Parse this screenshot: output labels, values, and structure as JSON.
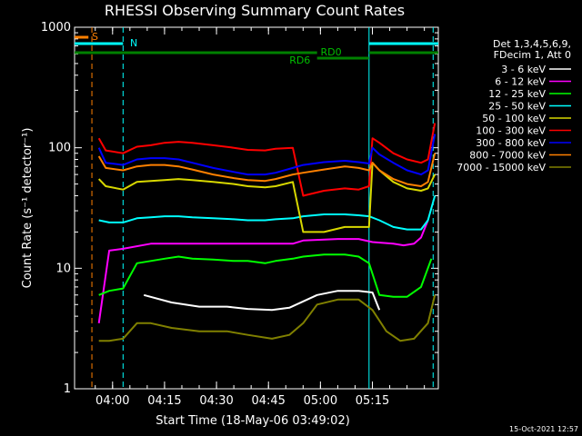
{
  "title": "RHESSI Observing Summary Count Rates",
  "footer_timestamp": "15-Oct-2021 12:57",
  "chart_data": {
    "type": "line",
    "title": "RHESSI Observing Summary Count Rates",
    "xlabel": "Start Time (18-May-06 03:49:02)",
    "ylabel": "Count Rate (s⁻¹ detector⁻¹)",
    "y_scale": "log",
    "ylim": [
      1,
      1000
    ],
    "xlim_minutes_after_03_49_02": [
      0,
      105
    ],
    "x_ticks": [
      "04:00",
      "04:15",
      "04:30",
      "04:45",
      "05:00",
      "05:15"
    ],
    "y_ticks": [
      "1",
      "10",
      "100",
      "1000"
    ],
    "legend_header": [
      "Det 1,3,4,5,6,9,",
      "FDecim 1, Att 0"
    ],
    "legend_position": "right",
    "series": [
      {
        "name": "3 - 6 keV",
        "color": "#ffffff",
        "values": [
          [
            20,
            6
          ],
          [
            28,
            5.2
          ],
          [
            36,
            4.8
          ],
          [
            44,
            4.8
          ],
          [
            50,
            4.6
          ],
          [
            57,
            4.5
          ],
          [
            62,
            4.7
          ],
          [
            70,
            6
          ],
          [
            76,
            6.5
          ],
          [
            82,
            6.5
          ],
          [
            86,
            6.3
          ],
          [
            88,
            4.5
          ]
        ]
      },
      {
        "name": "6 - 12 keV",
        "color": "#ff00ff",
        "values": [
          [
            7,
            3.5
          ],
          [
            10,
            14
          ],
          [
            14,
            14.5
          ],
          [
            22,
            16
          ],
          [
            30,
            16
          ],
          [
            40,
            16
          ],
          [
            50,
            16
          ],
          [
            58,
            16
          ],
          [
            63,
            16
          ],
          [
            66,
            17
          ],
          [
            76,
            17.5
          ],
          [
            82,
            17.5
          ],
          [
            86,
            16.5
          ],
          [
            92,
            16
          ],
          [
            95,
            15.5
          ],
          [
            98,
            16
          ],
          [
            100,
            18
          ],
          [
            102,
            25
          ]
        ]
      },
      {
        "name": "12 - 25 keV",
        "color": "#00ff00",
        "values": [
          [
            7,
            6
          ],
          [
            10,
            6.5
          ],
          [
            14,
            6.8
          ],
          [
            18,
            11
          ],
          [
            22,
            11.5
          ],
          [
            26,
            12
          ],
          [
            30,
            12.5
          ],
          [
            34,
            12
          ],
          [
            40,
            11.8
          ],
          [
            46,
            11.5
          ],
          [
            50,
            11.5
          ],
          [
            55,
            11
          ],
          [
            58,
            11.5
          ],
          [
            63,
            12
          ],
          [
            66,
            12.5
          ],
          [
            72,
            13
          ],
          [
            78,
            13
          ],
          [
            82,
            12.5
          ],
          [
            85,
            11
          ],
          [
            88,
            6
          ],
          [
            92,
            5.8
          ],
          [
            96,
            5.8
          ],
          [
            100,
            7
          ],
          [
            103,
            12
          ]
        ]
      },
      {
        "name": "25 - 50 keV",
        "color": "#00ffff",
        "values": [
          [
            7,
            25
          ],
          [
            10,
            24
          ],
          [
            14,
            24
          ],
          [
            18,
            26
          ],
          [
            22,
            26.5
          ],
          [
            26,
            27
          ],
          [
            30,
            27
          ],
          [
            34,
            26.5
          ],
          [
            40,
            26
          ],
          [
            46,
            25.5
          ],
          [
            50,
            25
          ],
          [
            55,
            25
          ],
          [
            58,
            25.5
          ],
          [
            63,
            26
          ],
          [
            66,
            27
          ],
          [
            72,
            28
          ],
          [
            78,
            28
          ],
          [
            82,
            27.5
          ],
          [
            85,
            27
          ],
          [
            88,
            25
          ],
          [
            92,
            22
          ],
          [
            96,
            21
          ],
          [
            100,
            21
          ],
          [
            102,
            25
          ],
          [
            104,
            40
          ]
        ]
      },
      {
        "name": "50 - 100 keV",
        "color": "#d8d800",
        "values": [
          [
            7,
            55
          ],
          [
            9,
            48
          ],
          [
            14,
            45
          ],
          [
            18,
            52
          ],
          [
            22,
            53
          ],
          [
            26,
            54
          ],
          [
            30,
            55
          ],
          [
            34,
            54
          ],
          [
            40,
            52
          ],
          [
            46,
            50
          ],
          [
            50,
            48
          ],
          [
            55,
            47
          ],
          [
            58,
            48
          ],
          [
            63,
            52
          ],
          [
            66,
            20
          ],
          [
            72,
            20
          ],
          [
            78,
            22
          ],
          [
            82,
            22
          ],
          [
            85,
            22
          ],
          [
            86,
            75
          ],
          [
            88,
            65
          ],
          [
            92,
            52
          ],
          [
            96,
            46
          ],
          [
            100,
            44
          ],
          [
            102,
            46
          ],
          [
            104,
            60
          ]
        ]
      },
      {
        "name": "100 - 300 keV",
        "color": "#ff0000",
        "values": [
          [
            7,
            120
          ],
          [
            9,
            95
          ],
          [
            14,
            90
          ],
          [
            18,
            102
          ],
          [
            22,
            105
          ],
          [
            26,
            110
          ],
          [
            30,
            112
          ],
          [
            34,
            110
          ],
          [
            40,
            105
          ],
          [
            46,
            100
          ],
          [
            50,
            96
          ],
          [
            55,
            95
          ],
          [
            58,
            98
          ],
          [
            63,
            100
          ],
          [
            66,
            40
          ],
          [
            72,
            44
          ],
          [
            78,
            46
          ],
          [
            82,
            45
          ],
          [
            85,
            48
          ],
          [
            86,
            120
          ],
          [
            88,
            110
          ],
          [
            92,
            90
          ],
          [
            96,
            80
          ],
          [
            100,
            75
          ],
          [
            102,
            80
          ],
          [
            104,
            160
          ]
        ]
      },
      {
        "name": "300 - 800 keV",
        "color": "#0000ff",
        "values": [
          [
            7,
            100
          ],
          [
            9,
            75
          ],
          [
            14,
            72
          ],
          [
            18,
            80
          ],
          [
            22,
            82
          ],
          [
            26,
            82
          ],
          [
            30,
            80
          ],
          [
            34,
            75
          ],
          [
            40,
            68
          ],
          [
            46,
            63
          ],
          [
            50,
            60
          ],
          [
            55,
            60
          ],
          [
            58,
            62
          ],
          [
            63,
            68
          ],
          [
            66,
            72
          ],
          [
            72,
            76
          ],
          [
            78,
            78
          ],
          [
            82,
            76
          ],
          [
            85,
            74
          ],
          [
            86,
            100
          ],
          [
            88,
            88
          ],
          [
            92,
            75
          ],
          [
            96,
            65
          ],
          [
            100,
            60
          ],
          [
            102,
            65
          ],
          [
            104,
            130
          ]
        ]
      },
      {
        "name": "800 - 7000 keV",
        "color": "#ff8000",
        "values": [
          [
            7,
            85
          ],
          [
            9,
            68
          ],
          [
            14,
            65
          ],
          [
            18,
            70
          ],
          [
            22,
            72
          ],
          [
            26,
            72
          ],
          [
            30,
            70
          ],
          [
            34,
            66
          ],
          [
            40,
            60
          ],
          [
            46,
            56
          ],
          [
            50,
            54
          ],
          [
            55,
            53
          ],
          [
            58,
            55
          ],
          [
            63,
            60
          ],
          [
            66,
            62
          ],
          [
            72,
            66
          ],
          [
            78,
            70
          ],
          [
            82,
            68
          ],
          [
            85,
            65
          ],
          [
            86,
            75
          ],
          [
            88,
            65
          ],
          [
            92,
            55
          ],
          [
            96,
            50
          ],
          [
            100,
            48
          ],
          [
            102,
            52
          ],
          [
            104,
            90
          ]
        ]
      },
      {
        "name": "7000 - 15000 keV",
        "color": "#808000",
        "values": [
          [
            7,
            2.5
          ],
          [
            10,
            2.5
          ],
          [
            14,
            2.6
          ],
          [
            18,
            3.5
          ],
          [
            22,
            3.5
          ],
          [
            28,
            3.2
          ],
          [
            36,
            3
          ],
          [
            44,
            3
          ],
          [
            50,
            2.8
          ],
          [
            57,
            2.6
          ],
          [
            62,
            2.8
          ],
          [
            66,
            3.5
          ],
          [
            70,
            5
          ],
          [
            76,
            5.5
          ],
          [
            82,
            5.5
          ],
          [
            86,
            4.5
          ],
          [
            90,
            3
          ],
          [
            94,
            2.5
          ],
          [
            98,
            2.6
          ],
          [
            102,
            3.5
          ],
          [
            104,
            6
          ]
        ]
      }
    ],
    "markers": [
      {
        "label": "S",
        "color": "#ff8000",
        "x_minutes": 5,
        "vline_x_minutes": 5
      },
      {
        "label": "N",
        "color": "#00ffff",
        "x_start_minutes": 0,
        "x_end_minutes": 14,
        "vline_x_minutes": 14
      },
      {
        "label": "RD0",
        "color": "#008000"
      },
      {
        "label": "RD6",
        "color": "#008000"
      }
    ],
    "grid": false
  }
}
